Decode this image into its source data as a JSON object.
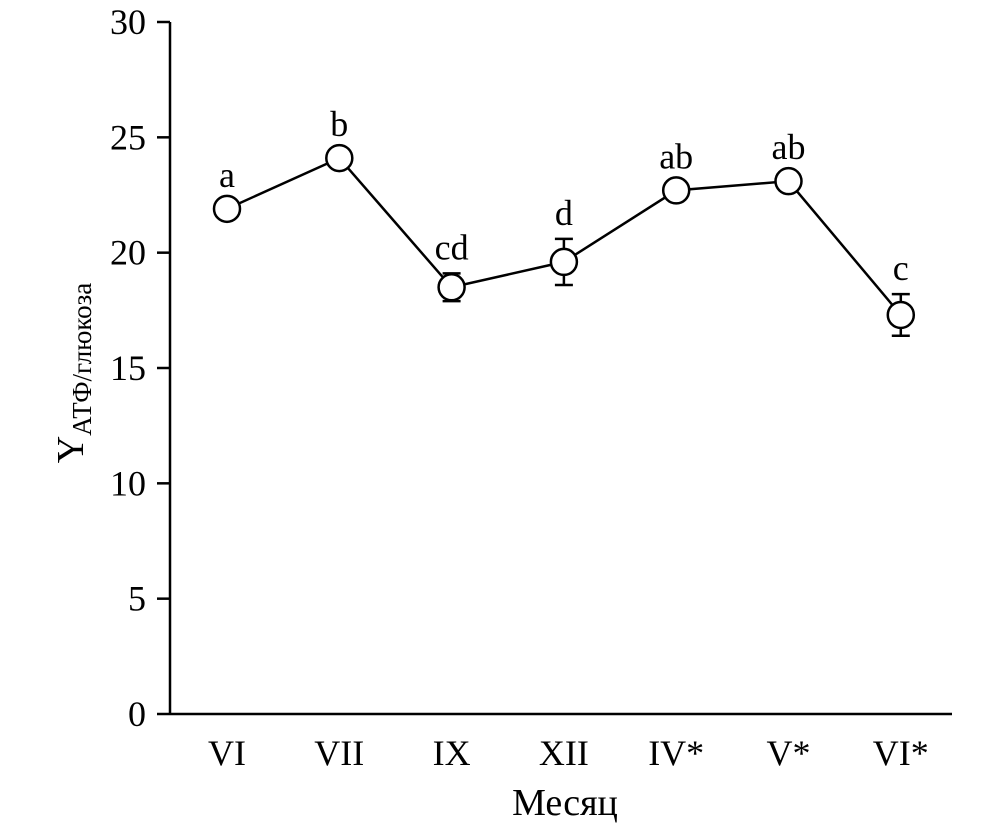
{
  "chart_data": {
    "type": "line",
    "categories": [
      "VI",
      "VII",
      "IX",
      "XII",
      "IV*",
      "V*",
      "VI*"
    ],
    "values": [
      21.9,
      24.1,
      18.5,
      19.6,
      22.7,
      23.1,
      17.3
    ],
    "errors": [
      0.1,
      0.1,
      0.6,
      1.0,
      0.1,
      0.1,
      0.9
    ],
    "significance_labels": [
      "a",
      "b",
      "cd",
      "d",
      "ab",
      "ab",
      "c"
    ],
    "ylabel": "Y",
    "ylabel_subscript": "АТФ/глюкоза",
    "xlabel": "Месяц",
    "ylim": [
      0,
      30
    ],
    "yticks": [
      0,
      5,
      10,
      15,
      20,
      25,
      30
    ],
    "grid": false,
    "legend": false,
    "colors": {
      "line": "#000000",
      "marker_fill": "#ffffff",
      "marker_stroke": "#000000"
    }
  }
}
